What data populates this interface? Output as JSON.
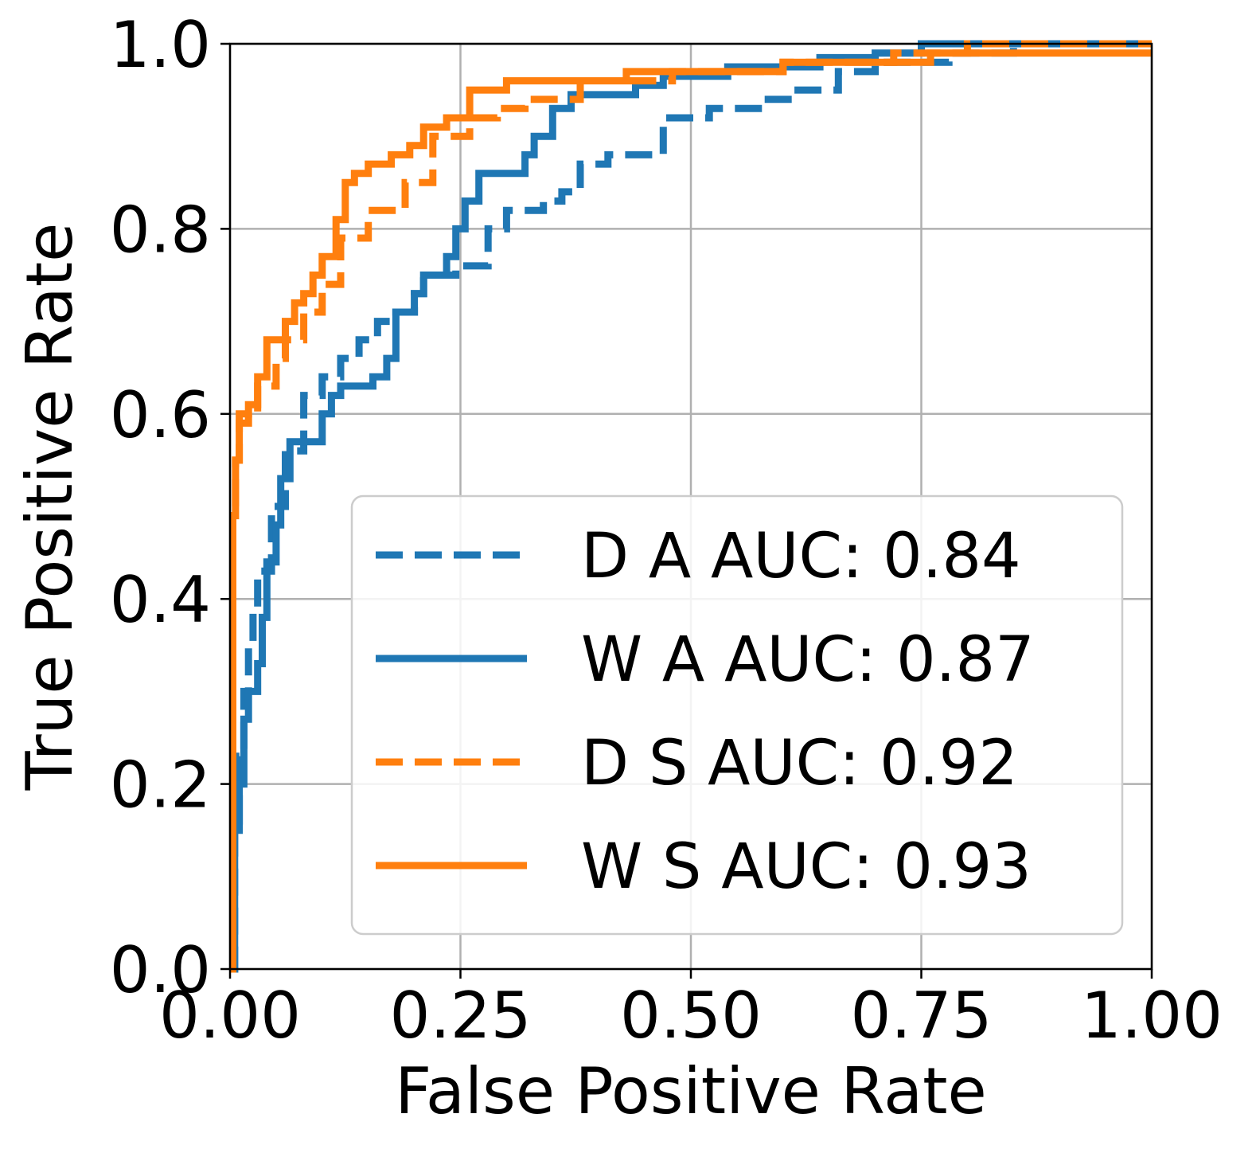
{
  "chart_data": {
    "type": "line",
    "title": "",
    "xlabel": "False Positive Rate",
    "ylabel": "True Positive Rate",
    "xlim": [
      0.0,
      1.0
    ],
    "ylim": [
      0.0,
      1.0
    ],
    "grid": true,
    "legend_position": "lower-right",
    "x_ticks": [
      0.0,
      0.25,
      0.5,
      0.75,
      1.0
    ],
    "x_tick_labels": [
      "0.00",
      "0.25",
      "0.50",
      "0.75",
      "1.00"
    ],
    "y_ticks": [
      0.0,
      0.2,
      0.4,
      0.6,
      0.8,
      1.0
    ],
    "y_tick_labels": [
      "0.0",
      "0.2",
      "0.4",
      "0.6",
      "0.8",
      "1.0"
    ],
    "series": [
      {
        "name": "D A AUC: 0.84",
        "color": "#1f77b4",
        "dash": "dashed",
        "x": [
          0.0,
          0.005,
          0.005,
          0.01,
          0.01,
          0.015,
          0.015,
          0.02,
          0.02,
          0.025,
          0.025,
          0.03,
          0.03,
          0.045,
          0.045,
          0.06,
          0.06,
          0.08,
          0.08,
          0.1,
          0.1,
          0.12,
          0.12,
          0.14,
          0.14,
          0.16,
          0.16,
          0.18,
          0.18,
          0.2,
          0.2,
          0.21,
          0.21,
          0.245,
          0.245,
          0.28,
          0.28,
          0.3,
          0.3,
          0.34,
          0.34,
          0.36,
          0.36,
          0.38,
          0.38,
          0.41,
          0.41,
          0.47,
          0.47,
          0.52,
          0.52,
          0.58,
          0.58,
          0.61,
          0.61,
          0.66,
          0.66,
          0.7,
          0.7,
          0.76,
          0.76,
          0.78,
          0.78,
          0.85,
          0.85,
          1.0
        ],
        "y": [
          0.0,
          0.0,
          0.16,
          0.16,
          0.23,
          0.23,
          0.3,
          0.3,
          0.35,
          0.35,
          0.38,
          0.38,
          0.43,
          0.43,
          0.5,
          0.5,
          0.56,
          0.56,
          0.62,
          0.62,
          0.64,
          0.64,
          0.66,
          0.66,
          0.68,
          0.68,
          0.7,
          0.7,
          0.71,
          0.71,
          0.73,
          0.73,
          0.75,
          0.75,
          0.76,
          0.76,
          0.8,
          0.8,
          0.82,
          0.82,
          0.83,
          0.83,
          0.84,
          0.84,
          0.87,
          0.87,
          0.88,
          0.88,
          0.92,
          0.92,
          0.93,
          0.93,
          0.94,
          0.94,
          0.95,
          0.95,
          0.97,
          0.97,
          0.98,
          0.98,
          0.98,
          0.98,
          0.99,
          0.99,
          1.0,
          1.0
        ]
      },
      {
        "name": "W A AUC: 0.87",
        "color": "#1f77b4",
        "dash": "solid",
        "x": [
          0.0,
          0.005,
          0.005,
          0.01,
          0.01,
          0.015,
          0.015,
          0.02,
          0.02,
          0.03,
          0.03,
          0.035,
          0.035,
          0.04,
          0.04,
          0.05,
          0.05,
          0.055,
          0.055,
          0.065,
          0.065,
          0.07,
          0.07,
          0.1,
          0.1,
          0.11,
          0.11,
          0.12,
          0.12,
          0.155,
          0.155,
          0.17,
          0.17,
          0.18,
          0.18,
          0.2,
          0.2,
          0.21,
          0.21,
          0.235,
          0.235,
          0.245,
          0.245,
          0.255,
          0.255,
          0.27,
          0.27,
          0.32,
          0.32,
          0.33,
          0.33,
          0.35,
          0.35,
          0.37,
          0.37,
          0.44,
          0.44,
          0.47,
          0.47,
          0.54,
          0.54,
          0.64,
          0.64,
          0.7,
          0.7,
          0.75,
          0.75,
          1.0
        ],
        "y": [
          0.0,
          0.0,
          0.15,
          0.15,
          0.2,
          0.2,
          0.27,
          0.27,
          0.3,
          0.3,
          0.33,
          0.33,
          0.38,
          0.38,
          0.44,
          0.44,
          0.48,
          0.48,
          0.53,
          0.53,
          0.57,
          0.57,
          0.57,
          0.57,
          0.6,
          0.6,
          0.62,
          0.62,
          0.63,
          0.63,
          0.64,
          0.64,
          0.66,
          0.66,
          0.71,
          0.71,
          0.73,
          0.73,
          0.75,
          0.75,
          0.77,
          0.77,
          0.8,
          0.8,
          0.83,
          0.83,
          0.86,
          0.86,
          0.88,
          0.88,
          0.9,
          0.9,
          0.93,
          0.93,
          0.945,
          0.945,
          0.955,
          0.955,
          0.965,
          0.965,
          0.975,
          0.975,
          0.985,
          0.985,
          0.99,
          0.99,
          1.0,
          1.0
        ]
      },
      {
        "name": "D S AUC: 0.92",
        "color": "#ff7f0e",
        "dash": "dashed",
        "x": [
          0.0,
          0.003,
          0.003,
          0.006,
          0.006,
          0.01,
          0.01,
          0.02,
          0.02,
          0.03,
          0.03,
          0.05,
          0.05,
          0.06,
          0.06,
          0.08,
          0.08,
          0.1,
          0.1,
          0.12,
          0.12,
          0.15,
          0.15,
          0.19,
          0.19,
          0.22,
          0.22,
          0.26,
          0.26,
          0.29,
          0.29,
          0.32,
          0.32,
          0.38,
          0.38,
          0.48,
          0.48,
          0.6,
          0.6,
          0.72,
          0.72,
          0.8,
          0.8,
          1.0
        ],
        "y": [
          0.0,
          0.0,
          0.49,
          0.49,
          0.55,
          0.55,
          0.59,
          0.59,
          0.6,
          0.6,
          0.63,
          0.63,
          0.66,
          0.66,
          0.68,
          0.68,
          0.71,
          0.71,
          0.74,
          0.74,
          0.79,
          0.79,
          0.82,
          0.82,
          0.85,
          0.85,
          0.9,
          0.9,
          0.92,
          0.92,
          0.93,
          0.93,
          0.94,
          0.94,
          0.96,
          0.96,
          0.97,
          0.97,
          0.98,
          0.98,
          0.99,
          0.99,
          1.0,
          1.0
        ]
      },
      {
        "name": "W S AUC: 0.93",
        "color": "#ff7f0e",
        "dash": "solid",
        "x": [
          0.0,
          0.003,
          0.003,
          0.006,
          0.006,
          0.01,
          0.01,
          0.02,
          0.02,
          0.03,
          0.03,
          0.04,
          0.04,
          0.06,
          0.06,
          0.07,
          0.07,
          0.08,
          0.08,
          0.09,
          0.09,
          0.1,
          0.1,
          0.115,
          0.115,
          0.125,
          0.125,
          0.135,
          0.135,
          0.15,
          0.15,
          0.175,
          0.175,
          0.195,
          0.195,
          0.21,
          0.21,
          0.235,
          0.235,
          0.26,
          0.26,
          0.275,
          0.275,
          0.3,
          0.3,
          0.43,
          0.43,
          0.6,
          0.6,
          0.76,
          0.76,
          1.0
        ],
        "y": [
          0.0,
          0.0,
          0.49,
          0.49,
          0.55,
          0.55,
          0.6,
          0.6,
          0.61,
          0.61,
          0.64,
          0.64,
          0.68,
          0.68,
          0.7,
          0.7,
          0.72,
          0.72,
          0.73,
          0.73,
          0.75,
          0.75,
          0.77,
          0.77,
          0.81,
          0.81,
          0.85,
          0.85,
          0.86,
          0.86,
          0.87,
          0.87,
          0.88,
          0.88,
          0.89,
          0.89,
          0.91,
          0.91,
          0.92,
          0.92,
          0.95,
          0.95,
          0.95,
          0.95,
          0.96,
          0.96,
          0.97,
          0.97,
          0.98,
          0.98,
          0.99,
          0.99
        ]
      }
    ]
  }
}
